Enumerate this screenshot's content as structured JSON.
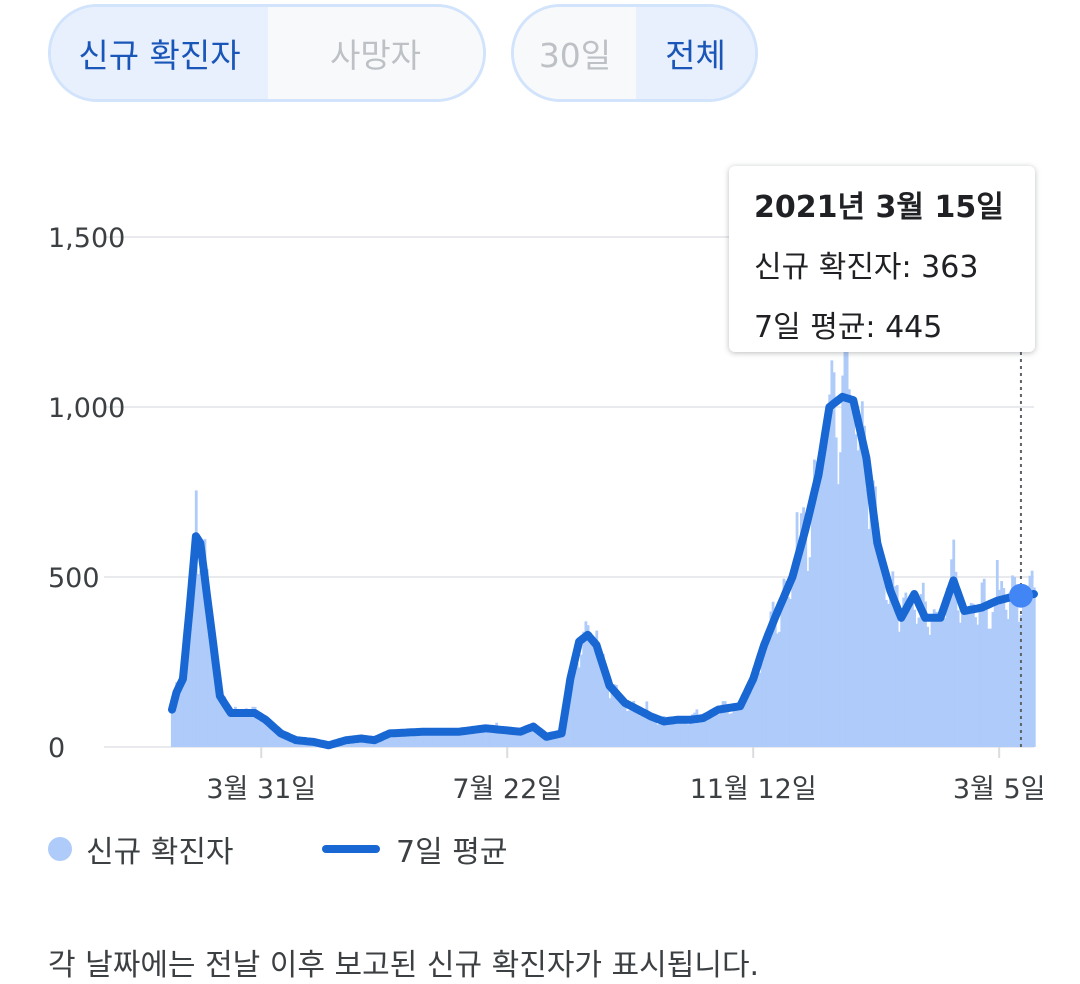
{
  "metric_toggle": [
    {
      "label": "신규 확진자",
      "selected": true
    },
    {
      "label": "사망자",
      "selected": false
    }
  ],
  "range_toggle": [
    {
      "label": "30일",
      "selected": false
    },
    {
      "label": "전체",
      "selected": true
    }
  ],
  "tooltip": {
    "date": "2021년 3월 15일",
    "cases_line": "신규 확진자: 363",
    "avg_line": "7일 평균: 445"
  },
  "legend": {
    "bars_label": "신규 확진자",
    "line_label": "7일 평균"
  },
  "footnote": "각 날짜에는 전날 이후 보고된 신규 확진자가 표시됩니다.",
  "colors": {
    "bar": "#aecbfa",
    "line": "#1967d2",
    "highlight": "#4285f4",
    "grid": "#e8eaed"
  },
  "chart_data": {
    "type": "bar",
    "yticks": [
      {
        "value": 0,
        "label": "0"
      },
      {
        "value": 500,
        "label": "500"
      },
      {
        "value": 1000,
        "label": "1,000"
      },
      {
        "value": 1500,
        "label": "1,500"
      }
    ],
    "ylim": [
      0,
      1500
    ],
    "xlim": [
      "2020-02-19",
      "2021-03-21"
    ],
    "xticks": [
      {
        "date": "2020-03-31",
        "label": "3월 31일"
      },
      {
        "date": "2020-07-22",
        "label": "7월 22일"
      },
      {
        "date": "2020-11-12",
        "label": "11월 12일"
      },
      {
        "date": "2021-03-05",
        "label": "3월 5일"
      }
    ],
    "grid": true,
    "highlight": {
      "date": "2021-03-15",
      "cases": 363,
      "avg": 445
    },
    "avg_keypoints": [
      [
        "2020-02-19",
        110
      ],
      [
        "2020-02-21",
        160
      ],
      [
        "2020-02-24",
        200
      ],
      [
        "2020-02-27",
        400
      ],
      [
        "2020-03-01",
        620
      ],
      [
        "2020-03-03",
        600
      ],
      [
        "2020-03-08",
        350
      ],
      [
        "2020-03-12",
        150
      ],
      [
        "2020-03-17",
        100
      ],
      [
        "2020-03-22",
        100
      ],
      [
        "2020-03-28",
        100
      ],
      [
        "2020-04-02",
        80
      ],
      [
        "2020-04-09",
        40
      ],
      [
        "2020-04-16",
        20
      ],
      [
        "2020-04-24",
        15
      ],
      [
        "2020-05-01",
        5
      ],
      [
        "2020-05-09",
        20
      ],
      [
        "2020-05-16",
        25
      ],
      [
        "2020-05-22",
        20
      ],
      [
        "2020-05-29",
        40
      ],
      [
        "2020-06-14",
        45
      ],
      [
        "2020-06-30",
        45
      ],
      [
        "2020-07-12",
        55
      ],
      [
        "2020-07-28",
        45
      ],
      [
        "2020-08-03",
        60
      ],
      [
        "2020-08-09",
        30
      ],
      [
        "2020-08-16",
        40
      ],
      [
        "2020-08-20",
        200
      ],
      [
        "2020-08-24",
        310
      ],
      [
        "2020-08-28",
        330
      ],
      [
        "2020-09-01",
        300
      ],
      [
        "2020-09-07",
        180
      ],
      [
        "2020-09-14",
        130
      ],
      [
        "2020-09-20",
        110
      ],
      [
        "2020-09-26",
        90
      ],
      [
        "2020-10-02",
        75
      ],
      [
        "2020-10-08",
        80
      ],
      [
        "2020-10-14",
        80
      ],
      [
        "2020-10-20",
        85
      ],
      [
        "2020-10-27",
        110
      ],
      [
        "2020-11-06",
        120
      ],
      [
        "2020-11-12",
        200
      ],
      [
        "2020-11-17",
        300
      ],
      [
        "2020-11-22",
        380
      ],
      [
        "2020-11-30",
        500
      ],
      [
        "2020-12-06",
        640
      ],
      [
        "2020-12-12",
        800
      ],
      [
        "2020-12-17",
        1000
      ],
      [
        "2020-12-23",
        1030
      ],
      [
        "2020-12-28",
        1020
      ],
      [
        "2021-01-03",
        850
      ],
      [
        "2021-01-08",
        600
      ],
      [
        "2021-01-14",
        460
      ],
      [
        "2021-01-19",
        380
      ],
      [
        "2021-01-25",
        450
      ],
      [
        "2021-01-30",
        380
      ],
      [
        "2021-02-06",
        380
      ],
      [
        "2021-02-12",
        490
      ],
      [
        "2021-02-17",
        400
      ],
      [
        "2021-02-25",
        410
      ],
      [
        "2021-03-04",
        430
      ],
      [
        "2021-03-10",
        440
      ],
      [
        "2021-03-15",
        445
      ],
      [
        "2021-03-21",
        450
      ]
    ]
  }
}
